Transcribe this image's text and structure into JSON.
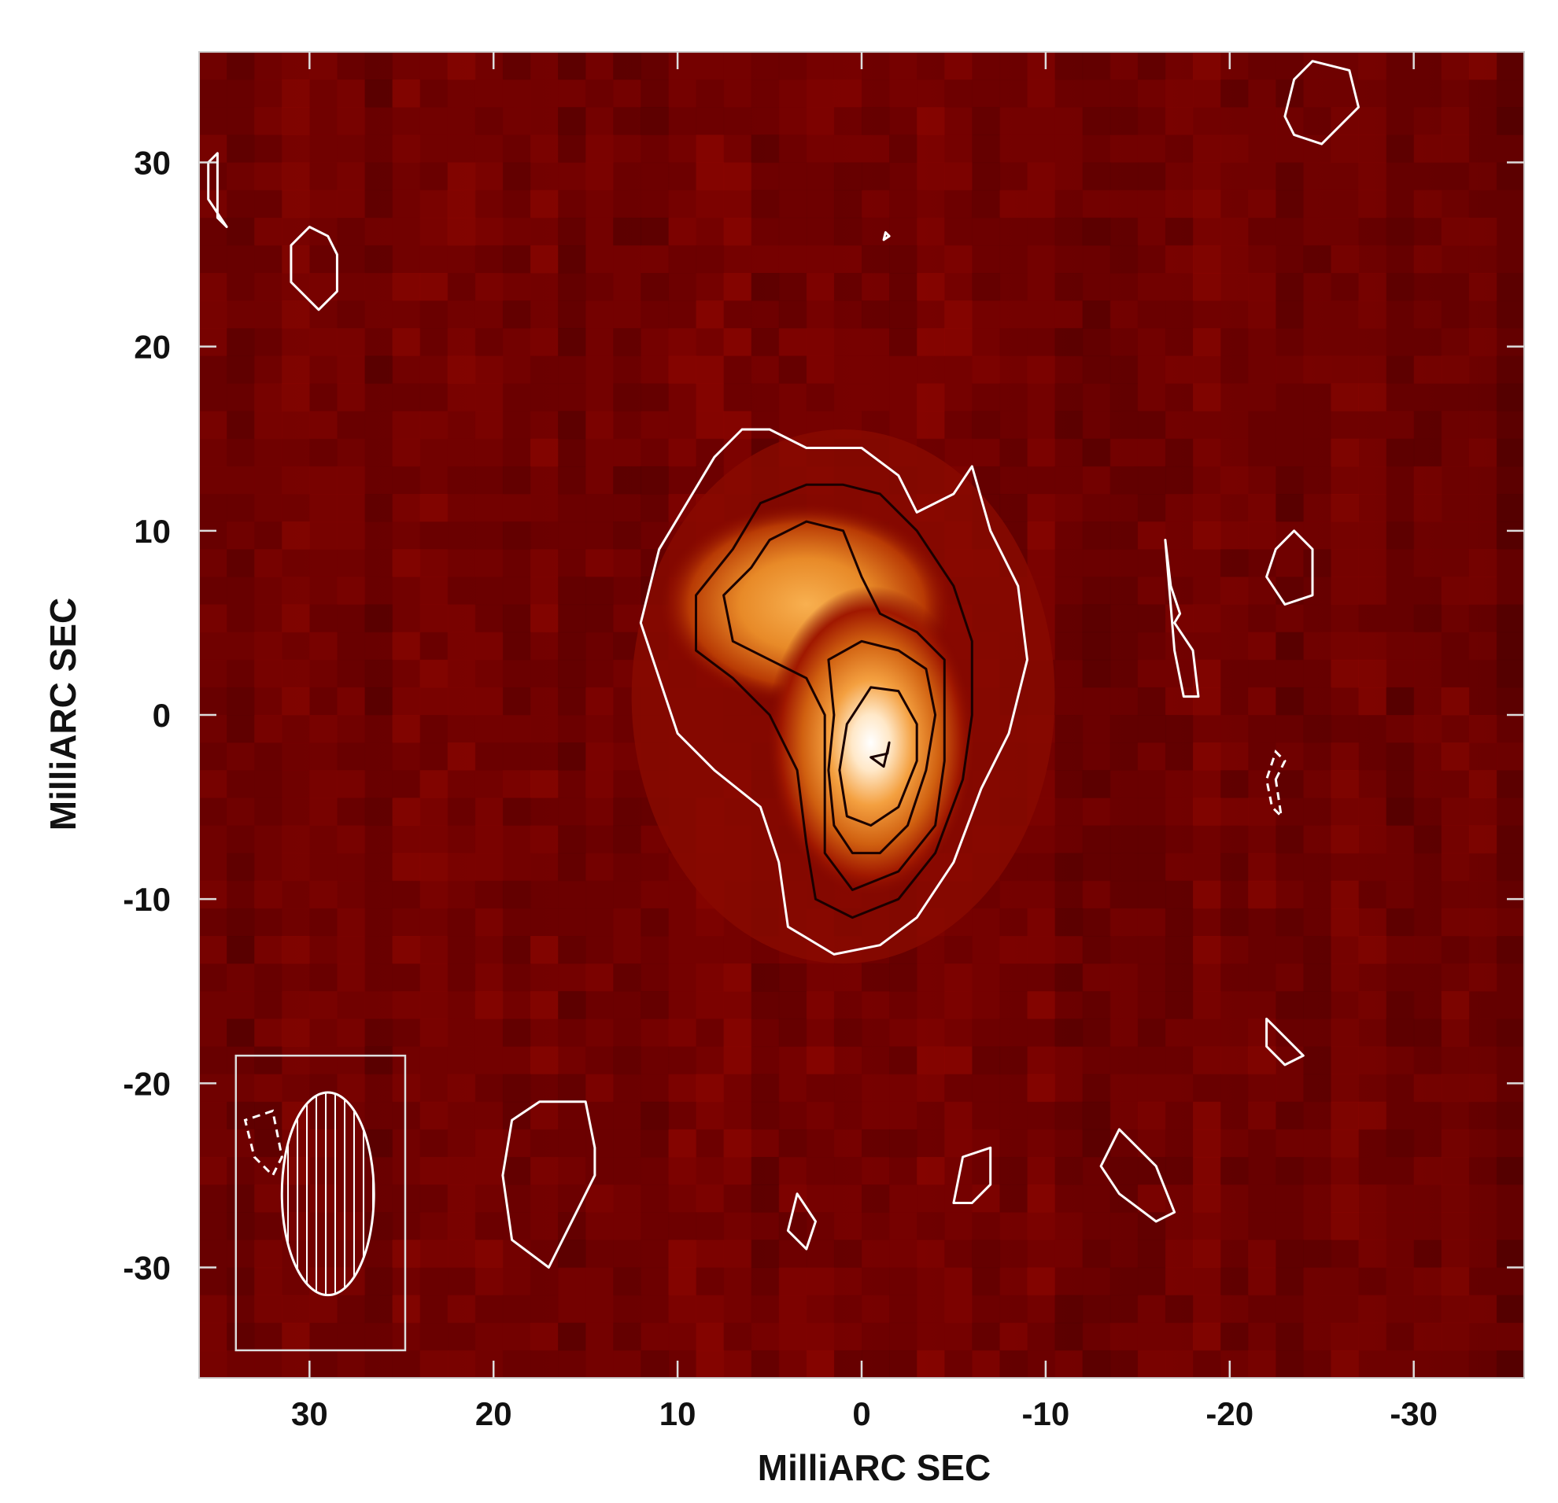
{
  "chart_data": {
    "type": "heatmap",
    "title": "",
    "xlabel": "MilliARC SEC",
    "ylabel": "MilliARC SEC",
    "xlim": [
      36,
      -36
    ],
    "ylim": [
      -36,
      36
    ],
    "x_ticks": [
      30,
      20,
      10,
      0,
      -10,
      -20,
      -30
    ],
    "y_ticks": [
      30,
      20,
      10,
      0,
      -10,
      -20,
      -30
    ],
    "x_tick_labels": [
      "30",
      "20",
      "10",
      "0",
      "-10",
      "-20",
      "-30"
    ],
    "y_tick_labels": [
      "30",
      "20",
      "10",
      "0",
      "-10",
      "-20",
      "-30"
    ],
    "colormap": [
      "#2a0000",
      "#5a0000",
      "#8a0a00",
      "#b02a00",
      "#d86a10",
      "#f0a030",
      "#ffd090",
      "#ffffff"
    ],
    "grid": false,
    "legend": "none",
    "source_peak": {
      "x": -1,
      "y": -2
    },
    "contour_colors": {
      "outer": "#ffffff",
      "inner": "#1a0000"
    },
    "contours": [
      {
        "level": 1,
        "color": "outer",
        "points": [
          [
            12,
            5
          ],
          [
            11,
            9
          ],
          [
            8,
            14
          ],
          [
            6.5,
            15.5
          ],
          [
            5,
            15.5
          ],
          [
            3,
            14.5
          ],
          [
            0,
            14.5
          ],
          [
            -2,
            13
          ],
          [
            -3,
            11
          ],
          [
            -5,
            12
          ],
          [
            -6,
            13.5
          ],
          [
            -7,
            10
          ],
          [
            -8.5,
            7
          ],
          [
            -9,
            3
          ],
          [
            -8,
            -1
          ],
          [
            -6.5,
            -4
          ],
          [
            -5,
            -8
          ],
          [
            -3,
            -11
          ],
          [
            -1,
            -12.5
          ],
          [
            1.5,
            -13
          ],
          [
            4,
            -11.5
          ],
          [
            4.5,
            -8
          ],
          [
            5.5,
            -5
          ],
          [
            8,
            -3
          ],
          [
            10,
            -1
          ],
          [
            11,
            2
          ],
          [
            12,
            5
          ]
        ]
      },
      {
        "level": 2,
        "color": "inner",
        "points": [
          [
            7,
            9
          ],
          [
            9,
            6.5
          ],
          [
            9,
            3.5
          ],
          [
            7,
            2
          ],
          [
            5,
            0
          ],
          [
            3.5,
            -3
          ],
          [
            3,
            -7
          ],
          [
            2.5,
            -10
          ],
          [
            0.5,
            -11
          ],
          [
            -2,
            -10
          ],
          [
            -4,
            -7.5
          ],
          [
            -5.5,
            -3.5
          ],
          [
            -6,
            0
          ],
          [
            -6,
            4
          ],
          [
            -5,
            7
          ],
          [
            -3,
            10
          ],
          [
            -1,
            12
          ],
          [
            1,
            12.5
          ],
          [
            3,
            12.5
          ],
          [
            5.5,
            11.5
          ],
          [
            7,
            9
          ]
        ]
      },
      {
        "level": 3,
        "color": "inner",
        "points": [
          [
            6,
            8
          ],
          [
            7.5,
            6.5
          ],
          [
            7,
            4
          ],
          [
            5,
            3
          ],
          [
            3,
            2
          ],
          [
            2,
            0
          ],
          [
            2,
            -4
          ],
          [
            2,
            -7.5
          ],
          [
            0.5,
            -9.5
          ],
          [
            -2,
            -8.5
          ],
          [
            -4,
            -6
          ],
          [
            -4.5,
            -2.5
          ],
          [
            -4.5,
            1
          ],
          [
            -4.5,
            3
          ],
          [
            -3,
            4.5
          ],
          [
            -1,
            5.5
          ],
          [
            0,
            7.5
          ],
          [
            1,
            10
          ],
          [
            3,
            10.5
          ],
          [
            5,
            9.5
          ],
          [
            6,
            8
          ]
        ]
      },
      {
        "level": 4,
        "color": "inner",
        "points": [
          [
            1.8,
            3
          ],
          [
            1.5,
            0
          ],
          [
            1.8,
            -3
          ],
          [
            1.5,
            -6
          ],
          [
            0.5,
            -7.5
          ],
          [
            -1,
            -7.5
          ],
          [
            -2.5,
            -6
          ],
          [
            -3.5,
            -3
          ],
          [
            -4,
            0
          ],
          [
            -3.5,
            2.5
          ],
          [
            -2,
            3.5
          ],
          [
            0,
            4
          ],
          [
            1.8,
            3
          ]
        ]
      },
      {
        "level": 5,
        "color": "inner",
        "points": [
          [
            0.8,
            -0.5
          ],
          [
            1.2,
            -3
          ],
          [
            0.8,
            -5.5
          ],
          [
            -0.5,
            -6
          ],
          [
            -2,
            -5
          ],
          [
            -3,
            -2.5
          ],
          [
            -3,
            -0.5
          ],
          [
            -2,
            1.3
          ],
          [
            -0.5,
            1.5
          ],
          [
            0.8,
            -0.5
          ]
        ]
      },
      {
        "level": 6,
        "color": "inner",
        "points": [
          [
            -0.5,
            -2.3
          ],
          [
            -1.2,
            -2.8
          ],
          [
            -1.5,
            -1.5
          ],
          [
            -1.4,
            -2.1
          ],
          [
            -0.5,
            -2.3
          ]
        ]
      },
      {
        "level": 1,
        "color": "outer",
        "points": [
          [
            31,
            25.5
          ],
          [
            30,
            26.5
          ],
          [
            29,
            26
          ],
          [
            28.5,
            25
          ],
          [
            28.5,
            23
          ],
          [
            29.5,
            22
          ],
          [
            31,
            23.5
          ],
          [
            31,
            25.5
          ]
        ]
      },
      {
        "level": 1,
        "color": "outer",
        "points": [
          [
            35.5,
            30
          ],
          [
            35,
            30.5
          ],
          [
            35,
            27
          ],
          [
            34.5,
            26.5
          ],
          [
            35.5,
            28
          ],
          [
            35.5,
            30
          ]
        ]
      },
      {
        "level": 1,
        "color": "outer",
        "points": [
          [
            -23,
            32.5
          ],
          [
            -23.5,
            34.5
          ],
          [
            -24.5,
            35.5
          ],
          [
            -26.5,
            35
          ],
          [
            -27,
            33
          ],
          [
            -25,
            31
          ],
          [
            -23.5,
            31.5
          ],
          [
            -23,
            32.5
          ]
        ]
      },
      {
        "level": 1,
        "color": "outer",
        "points": [
          [
            -22,
            7.5
          ],
          [
            -22.5,
            9
          ],
          [
            -23.5,
            10
          ],
          [
            -24.5,
            9
          ],
          [
            -24.5,
            6.5
          ],
          [
            -23,
            6
          ],
          [
            -22,
            7.5
          ]
        ]
      },
      {
        "level": 1,
        "color": "outer",
        "points": [
          [
            -16.5,
            9.5
          ],
          [
            -16.8,
            7
          ],
          [
            -17.3,
            5.5
          ],
          [
            -17,
            5
          ],
          [
            -18,
            3.5
          ],
          [
            -18.3,
            1
          ],
          [
            -17.5,
            1
          ],
          [
            -17,
            3.5
          ],
          [
            -16.5,
            9.5
          ]
        ]
      },
      {
        "level": 1,
        "color": "outer",
        "points": [
          [
            -14,
            -22.5
          ],
          [
            -16,
            -24.5
          ],
          [
            -17,
            -27
          ],
          [
            -16,
            -27.5
          ],
          [
            -14,
            -26
          ],
          [
            -13,
            -24.5
          ],
          [
            -14,
            -22.5
          ]
        ]
      },
      {
        "level": 1,
        "color": "outer",
        "points": [
          [
            -22,
            -16.5
          ],
          [
            -22.5,
            -17
          ],
          [
            -24,
            -18.5
          ],
          [
            -23,
            -19
          ],
          [
            -22,
            -18
          ],
          [
            -22,
            -16.5
          ]
        ]
      },
      {
        "level": 1,
        "color": "outer",
        "points": [
          [
            17.5,
            -21
          ],
          [
            15,
            -21
          ],
          [
            14.5,
            -23.5
          ],
          [
            14.5,
            -25
          ],
          [
            16,
            -28
          ],
          [
            17,
            -30
          ],
          [
            19,
            -28.5
          ],
          [
            19.5,
            -25
          ],
          [
            19,
            -22
          ],
          [
            17.5,
            -21
          ]
        ]
      },
      {
        "level": 1,
        "color": "outer",
        "points": [
          [
            -6,
            -26.5
          ],
          [
            -7,
            -25.5
          ],
          [
            -7,
            -23.5
          ],
          [
            -5.5,
            -24
          ],
          [
            -5,
            -26.5
          ],
          [
            -6,
            -26.5
          ]
        ]
      },
      {
        "level": 1,
        "color": "outer",
        "points": [
          [
            3.5,
            -26
          ],
          [
            4,
            -28
          ],
          [
            3,
            -29
          ],
          [
            2.5,
            -27.5
          ],
          [
            3.5,
            -26
          ]
        ]
      },
      {
        "level": 1,
        "color": "outer",
        "points": [
          [
            -1.2,
            25.8
          ],
          [
            -1.5,
            26
          ],
          [
            -1.3,
            26.2
          ],
          [
            -1.2,
            25.8
          ]
        ]
      }
    ],
    "negative_contours": [
      {
        "points": [
          [
            -22.5,
            -3.5
          ],
          [
            -23,
            -2.5
          ],
          [
            -22.5,
            -2
          ],
          [
            -22,
            -3.5
          ],
          [
            -22.3,
            -5
          ],
          [
            -22.8,
            -5.5
          ],
          [
            -22.5,
            -3.5
          ]
        ]
      },
      {
        "points": [
          [
            32,
            -21.5
          ],
          [
            33.5,
            -22
          ],
          [
            33,
            -24
          ],
          [
            32,
            -25
          ],
          [
            31.5,
            -24
          ],
          [
            32,
            -21.5
          ]
        ]
      }
    ],
    "beam": {
      "x": 29,
      "y": -26,
      "major_axis_mas": 11,
      "minor_axis_mas": 5,
      "position_angle_deg": 0
    },
    "beam_box": {
      "x_range": [
        34,
        24.8
      ],
      "y_range": [
        -34.5,
        -18.5
      ]
    }
  }
}
